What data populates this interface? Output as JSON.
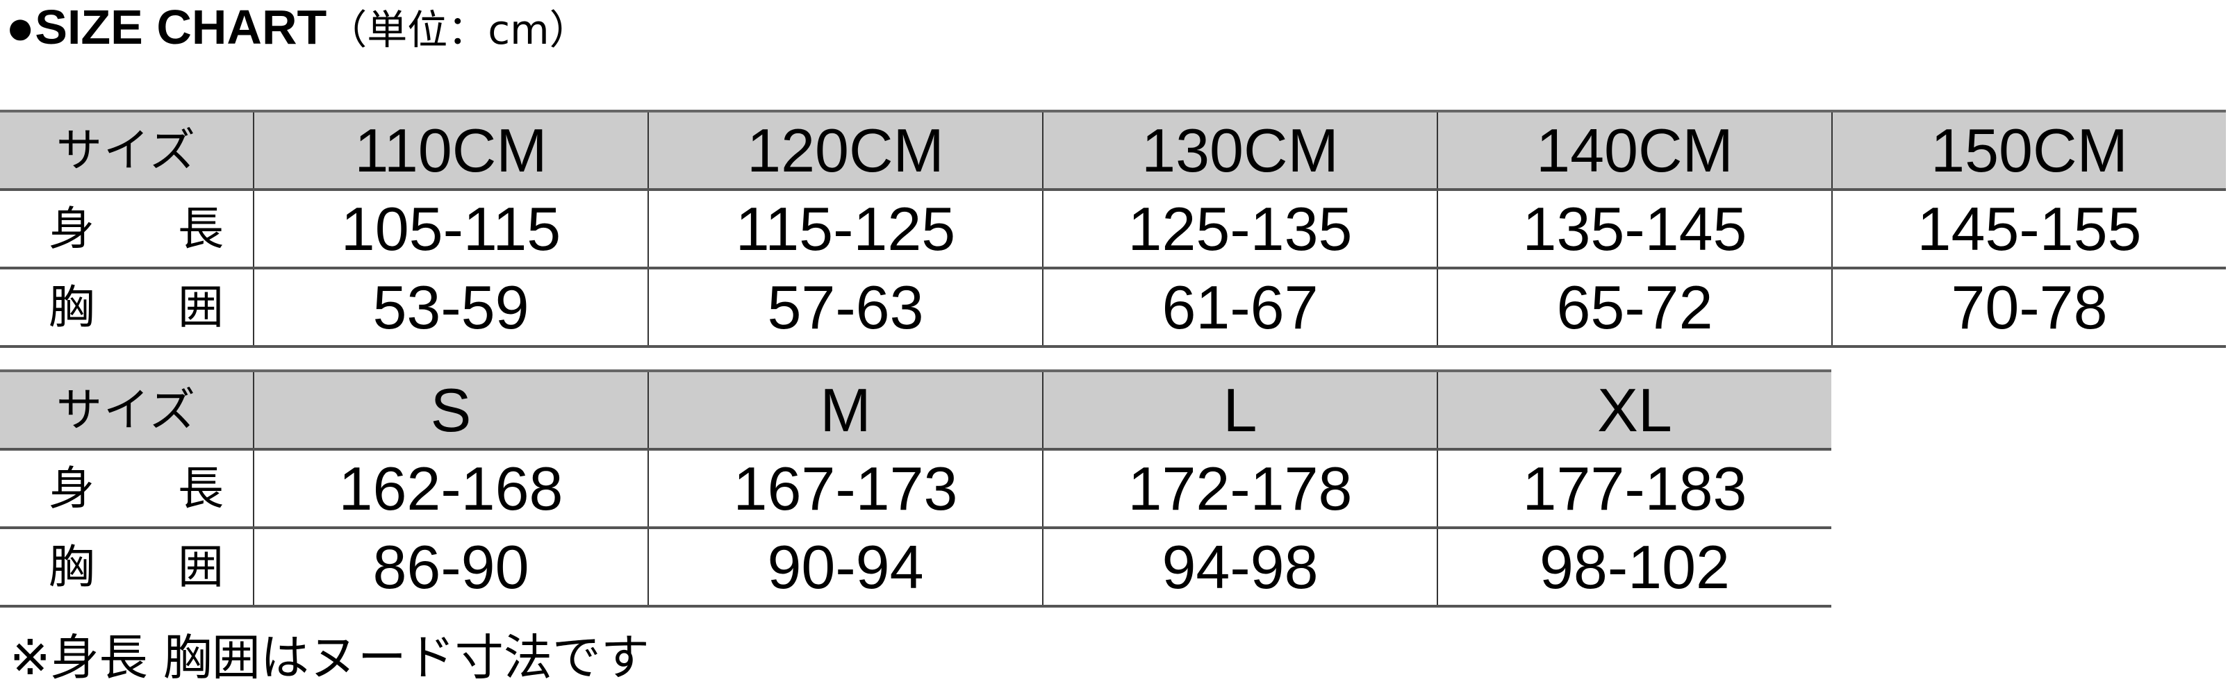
{
  "title": {
    "bullet": "●",
    "main": "SIZE CHART",
    "unit": "（単位：cm）"
  },
  "tables": [
    {
      "header_label": "サイズ",
      "sizes": [
        "110CM",
        "120CM",
        "130CM",
        "140CM",
        "150CM"
      ],
      "rows": [
        {
          "label": [
            "身",
            "長"
          ],
          "values": [
            "105-115",
            "115-125",
            "125-135",
            "135-145",
            "145-155"
          ]
        },
        {
          "label": [
            "胸",
            "囲"
          ],
          "values": [
            "53-59",
            "57-63",
            "61-67",
            "65-72",
            "70-78"
          ]
        }
      ]
    },
    {
      "header_label": "サイズ",
      "sizes": [
        "S",
        "M",
        "L",
        "XL"
      ],
      "rows": [
        {
          "label": [
            "身",
            "長"
          ],
          "values": [
            "162-168",
            "167-173",
            "172-178",
            "177-183"
          ]
        },
        {
          "label": [
            "胸",
            "囲"
          ],
          "values": [
            "86-90",
            "90-94",
            "94-98",
            "98-102"
          ]
        }
      ]
    }
  ],
  "note": "※身長 胸囲はヌード寸法です",
  "colors": {
    "header_bg": "#cccccc",
    "border": "#555555"
  }
}
